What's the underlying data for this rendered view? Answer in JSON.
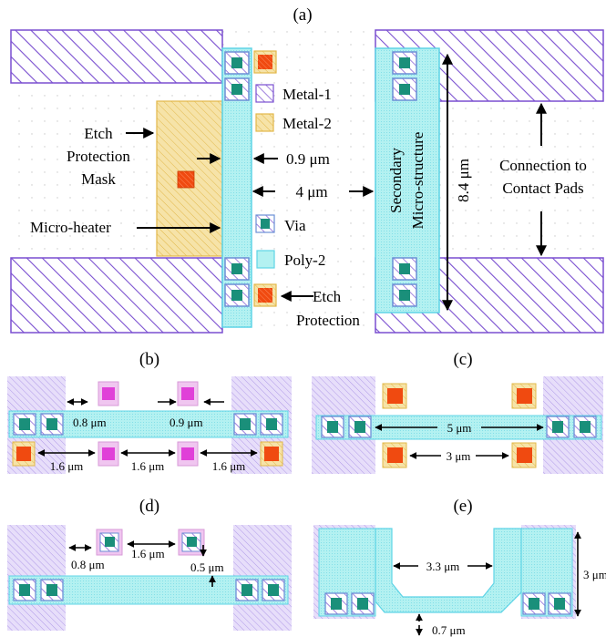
{
  "palette": {
    "metal1": "#7a4fd0",
    "metal2_fill": "#f6e3a8",
    "metal2_hatch": "#e2b84a",
    "poly_fill": "#b3f1f1",
    "poly_stroke": "#5fd4e6",
    "via_outer": "#6b8fd6",
    "via_inner": "#1a8f7a",
    "etch": "#f04a10",
    "magenta": "#e040d8",
    "magenta_bg": "#f0c6f0",
    "text": "#000000"
  },
  "panel_a": {
    "label": "(a)",
    "legend": [
      {
        "key": "metal1",
        "label": "Metal-1"
      },
      {
        "key": "metal2",
        "label": "Metal-2"
      },
      {
        "key": "via",
        "label": "Via"
      },
      {
        "key": "poly2",
        "label": "Poly-2"
      }
    ],
    "etch_mask_label": [
      "Etch",
      "Protection",
      "Mask"
    ],
    "microheater_label": "Micro-heater",
    "gap_label": "0.9 μm",
    "width_label": "4 μm",
    "secondary_label": [
      "Secondary",
      "Micro-structure"
    ],
    "height_label": "8.4 μm",
    "connection_label": [
      "Connection to",
      "Contact Pads"
    ],
    "etch_protection_label": [
      "Etch",
      "Protection"
    ]
  },
  "panel_b": {
    "label": "(b)",
    "dims": {
      "top_left": "0.8 μm",
      "top_right": "0.9 μm",
      "bottom": [
        "1.6 μm",
        "1.6 μm",
        "1.6 μm"
      ]
    }
  },
  "panel_c": {
    "label": "(c)",
    "dims": {
      "middle": "5 μm",
      "bottom": "3 μm"
    }
  },
  "panel_d": {
    "label": "(d)",
    "dims": {
      "left": "0.8 μm",
      "middle": "1.6 μm",
      "right": "0.5 μm"
    }
  },
  "panel_e": {
    "label": "(e)",
    "dims": {
      "width": "3.3 μm",
      "height": "3 μm",
      "bottom": "0.7 μm"
    }
  }
}
